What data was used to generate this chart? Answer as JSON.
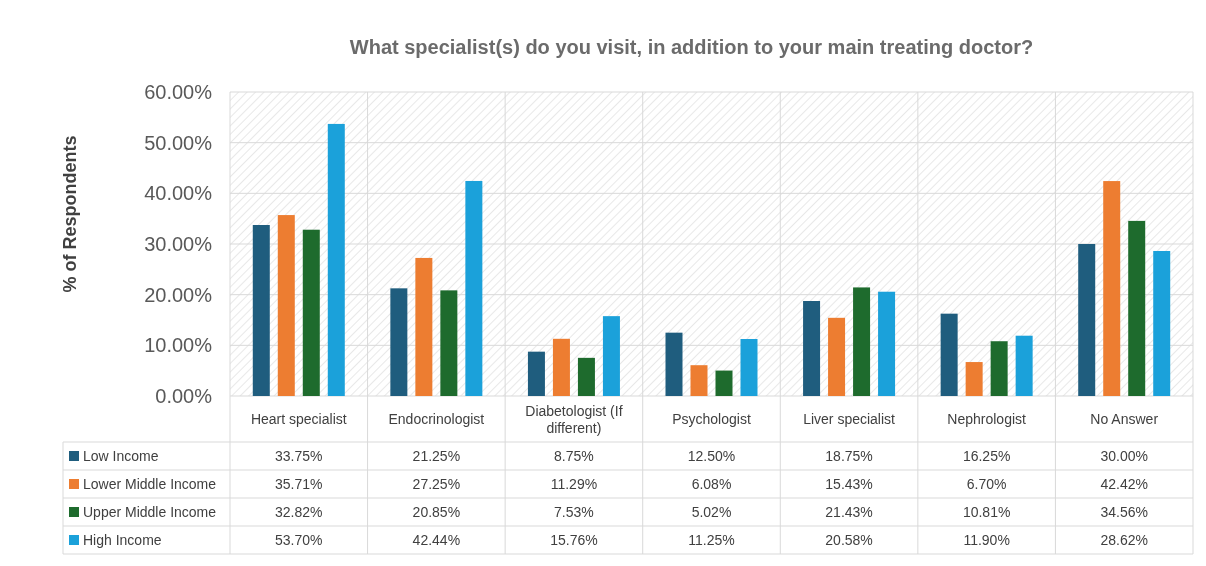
{
  "chart_data": {
    "type": "bar",
    "title": "What specialist(s) do you visit, in addition to your main treating doctor?",
    "ylabel": "% of Respondents",
    "categories": [
      "Heart specialist",
      "Endocrinologist",
      "Diabetologist (If different)",
      "Psychologist",
      "Liver specialist",
      "Nephrologist",
      "No Answer"
    ],
    "series": [
      {
        "name": "Low Income",
        "color": "#1f5d7e",
        "values": [
          33.75,
          21.25,
          8.75,
          12.5,
          18.75,
          16.25,
          30.0
        ],
        "value_labels": [
          "33.75%",
          "21.25%",
          "8.75%",
          "12.50%",
          "18.75%",
          "16.25%",
          "30.00%"
        ]
      },
      {
        "name": "Lower Middle Income",
        "color": "#ed7d31",
        "values": [
          35.71,
          27.25,
          11.29,
          6.08,
          15.43,
          6.7,
          42.42
        ],
        "value_labels": [
          "35.71%",
          "27.25%",
          "11.29%",
          "6.08%",
          "15.43%",
          "6.70%",
          "42.42%"
        ]
      },
      {
        "name": "Upper Middle Income",
        "color": "#1e6b2d",
        "values": [
          32.82,
          20.85,
          7.53,
          5.02,
          21.43,
          10.81,
          34.56
        ],
        "value_labels": [
          "32.82%",
          "20.85%",
          "7.53%",
          "5.02%",
          "21.43%",
          "10.81%",
          "34.56%"
        ]
      },
      {
        "name": "High Income",
        "color": "#1ba1da",
        "values": [
          53.7,
          42.44,
          15.76,
          11.25,
          20.58,
          11.9,
          28.62
        ],
        "value_labels": [
          "53.70%",
          "42.44%",
          "15.76%",
          "11.25%",
          "20.58%",
          "11.90%",
          "28.62%"
        ]
      }
    ],
    "ylim": [
      0,
      60
    ],
    "yticks": [
      {
        "value": 0,
        "label": "0.00%"
      },
      {
        "value": 10,
        "label": "10.00%"
      },
      {
        "value": 20,
        "label": "20.00%"
      },
      {
        "value": 30,
        "label": "30.00%"
      },
      {
        "value": 40,
        "label": "40.00%"
      },
      {
        "value": 50,
        "label": "50.00%"
      },
      {
        "value": 60,
        "label": "60.00%"
      }
    ],
    "grid": true,
    "legend": "bottom"
  }
}
